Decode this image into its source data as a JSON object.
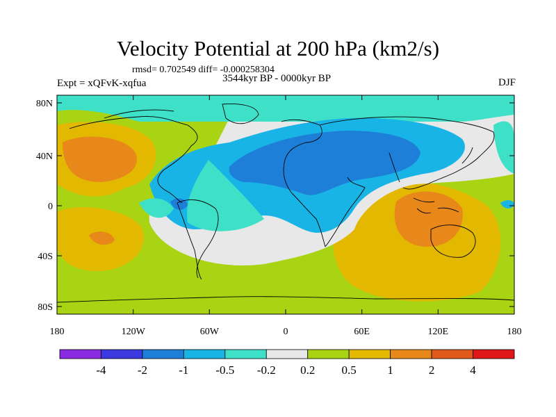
{
  "header": {
    "title": "Velocity Potential at 200 hPa (km2/s)",
    "stats": "rmsd= 0.702549 diff= -0.000258304",
    "experiment": "Expt = xQFvK-xqfua",
    "period": "3544kyr BP - 0000kyr BP",
    "season": "DJF"
  },
  "axes": {
    "lat_ticks": [
      "80N",
      "40N",
      "0",
      "40S",
      "80S"
    ],
    "lon_ticks": [
      "180",
      "120W",
      "60W",
      "0",
      "60E",
      "120E",
      "180"
    ]
  },
  "colorbar": {
    "colors": [
      "#8a2be2",
      "#3a3ae0",
      "#1e7fd8",
      "#19b4e6",
      "#3ee0c8",
      "#e8e8e8",
      "#a8d414",
      "#e2b800",
      "#e8881a",
      "#e05a1c",
      "#e01818"
    ],
    "labels": [
      "-4",
      "-2",
      "-1",
      "-0.5",
      "-0.2",
      "0.2",
      "0.5",
      "1",
      "2",
      "4"
    ]
  }
}
